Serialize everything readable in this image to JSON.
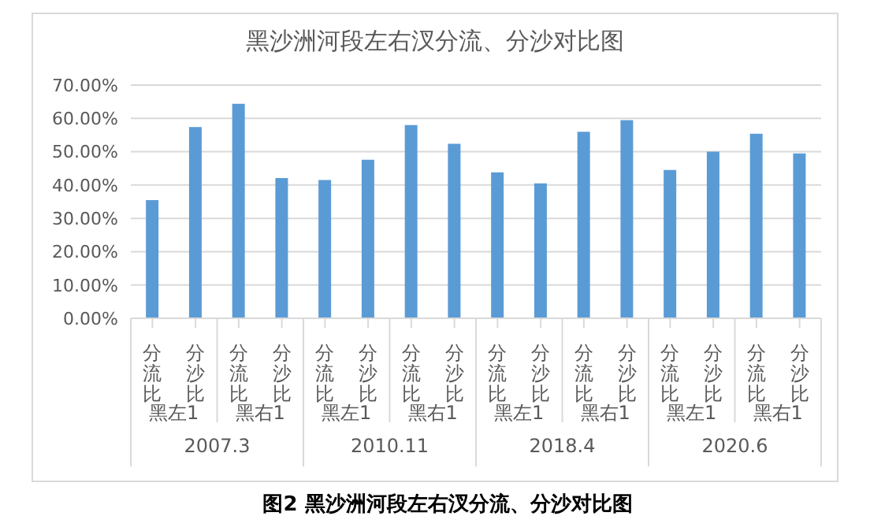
{
  "chart_data": {
    "type": "bar",
    "title": "黑沙洲河段左右汊分流、分沙对比图",
    "categories": [
      "分流比",
      "分沙比",
      "分流比",
      "分沙比",
      "分流比",
      "分沙比",
      "分流比",
      "分沙比",
      "分流比",
      "分沙比",
      "分流比",
      "分沙比",
      "分流比",
      "分沙比",
      "分流比",
      "分沙比"
    ],
    "values": [
      35.5,
      57.4,
      64.4,
      42.1,
      41.5,
      47.6,
      58.0,
      52.4,
      43.8,
      40.5,
      56.0,
      59.5,
      44.5,
      50.0,
      55.4,
      49.5
    ],
    "color": "#5b9bd5",
    "ylim": [
      0,
      70
    ],
    "yticks": [
      {
        "value": 0,
        "label": "0.00%"
      },
      {
        "value": 10,
        "label": "10.00%"
      },
      {
        "value": 20,
        "label": "20.00%"
      },
      {
        "value": 30,
        "label": "30.00%"
      },
      {
        "value": 40,
        "label": "40.00%"
      },
      {
        "value": 50,
        "label": "50.00%"
      },
      {
        "value": 60,
        "label": "60.00%"
      },
      {
        "value": 70,
        "label": "70.00%"
      }
    ],
    "grid": "y",
    "annotations": [
      "黑左1",
      "黑右1",
      "黑左1",
      "黑右1",
      "黑左1",
      "黑右1",
      "黑左1",
      "黑右1",
      "2007.3",
      "2010.11",
      "2018.4",
      "2020.6",
      "图2 黑沙洲河段左右汊分流、分沙对比图"
    ]
  }
}
